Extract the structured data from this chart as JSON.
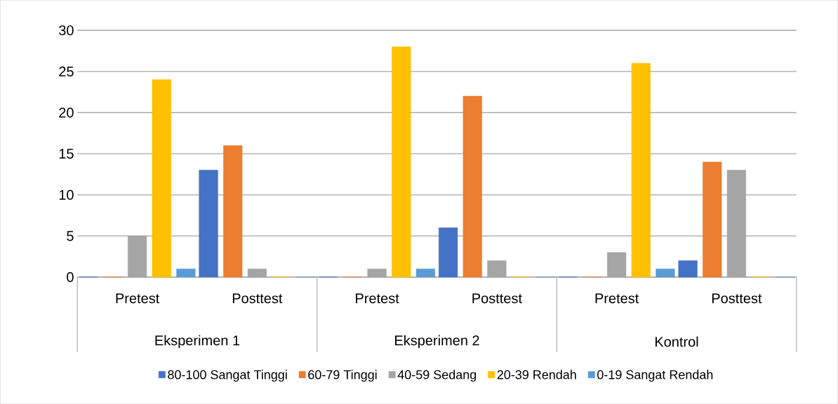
{
  "chart_data": {
    "type": "bar",
    "categories": [
      "Pretest",
      "Posttest",
      "Pretest",
      "Posttest",
      "Pretest",
      "Posttest"
    ],
    "annotations": [
      "Eksperimen 1",
      "Eksperimen 2",
      "Kontrol"
    ],
    "series": [
      {
        "name": "80-100 Sangat Tinggi",
        "color": "#4472c4",
        "values": [
          0,
          13,
          0,
          6,
          0,
          2
        ]
      },
      {
        "name": "60-79 Tinggi",
        "color": "#ed7d31",
        "values": [
          0,
          16,
          0,
          22,
          0,
          14
        ]
      },
      {
        "name": "40-59 Sedang",
        "color": "#a5a5a5",
        "values": [
          5,
          1,
          1,
          2,
          3,
          13
        ]
      },
      {
        "name": "20-39 Rendah",
        "color": "#ffc000",
        "values": [
          24,
          0,
          28,
          0,
          26,
          0
        ]
      },
      {
        "name": "0-19 Sangat Rendah",
        "color": "#5b9bd5",
        "values": [
          1,
          0,
          1,
          0,
          1,
          0
        ]
      }
    ],
    "ylim": [
      0,
      30
    ],
    "yticks": [
      0,
      5,
      10,
      15,
      20,
      25,
      30
    ],
    "grid": "y",
    "legend": "bottom"
  }
}
